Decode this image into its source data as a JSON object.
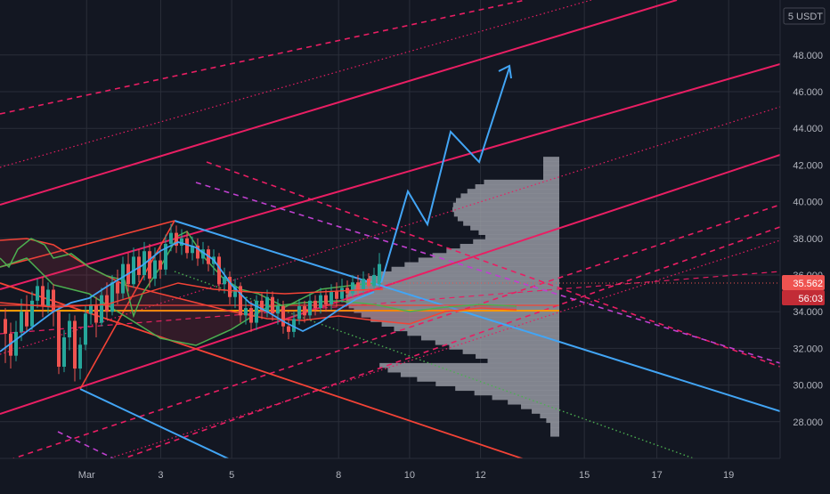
{
  "chart_data": {
    "type": "line",
    "currency_label": "5 USDT",
    "y_axis": {
      "ylim": [
        26.0,
        51.0
      ],
      "ticks": [
        "28.000",
        "30.000",
        "32.000",
        "34.000",
        "36.000",
        "38.000",
        "40.000",
        "42.000",
        "44.000",
        "46.000",
        "48.000"
      ]
    },
    "x_axis": {
      "xlim": [
        0,
        1
      ],
      "ticks": [
        {
          "label": "Mar",
          "x": 0.111
        },
        {
          "label": "3",
          "x": 0.206
        },
        {
          "label": "5",
          "x": 0.297
        },
        {
          "label": "8",
          "x": 0.434
        },
        {
          "label": "10",
          "x": 0.525
        },
        {
          "label": "12",
          "x": 0.616
        },
        {
          "label": "15",
          "x": 0.749
        },
        {
          "label": "17",
          "x": 0.842
        },
        {
          "label": "19",
          "x": 0.934
        }
      ]
    },
    "price_label": {
      "value": "35.562",
      "price": 35.562,
      "color": "#f23645"
    },
    "countdown_label": {
      "value": "56:03",
      "color": "#f23645"
    },
    "colors": {
      "background": "#131722",
      "grid": "#2a2e39",
      "up": "#26a69a",
      "down": "#ef5350",
      "blue": "#42a5f5",
      "orange": "#ff9800",
      "pink": "#e91e63",
      "magenta": "#c040d0",
      "green": "#4caf50",
      "red": "#f44336",
      "profile": "#9598a1"
    }
  }
}
